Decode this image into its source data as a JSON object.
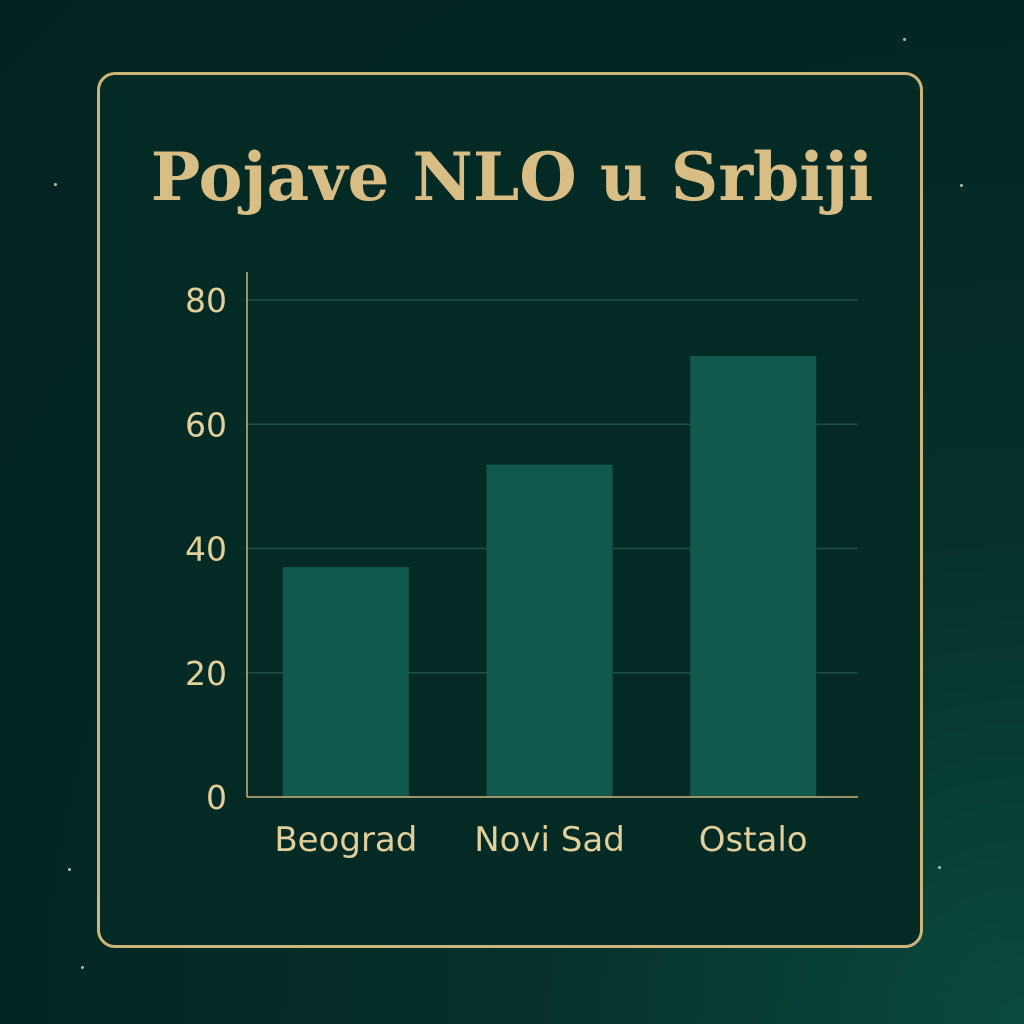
{
  "chart_data": {
    "type": "bar",
    "title": "Pojave NLO u Srbiji",
    "xlabel": "",
    "ylabel": "",
    "categories": [
      "Beograd",
      "Novi Sad",
      "Ostalo"
    ],
    "values": [
      37,
      53.5,
      71
    ],
    "ylim": [
      0,
      80
    ],
    "yticks": [
      "0",
      "20",
      "40",
      "60",
      "80"
    ],
    "grid": true,
    "legend": "none"
  },
  "colors": {
    "bar": "#11584d",
    "frame": "#cdb57a",
    "text": "#e3cf99",
    "title": "#d8be85",
    "grid": "#1f4e45",
    "axis": "#cdb57a"
  }
}
